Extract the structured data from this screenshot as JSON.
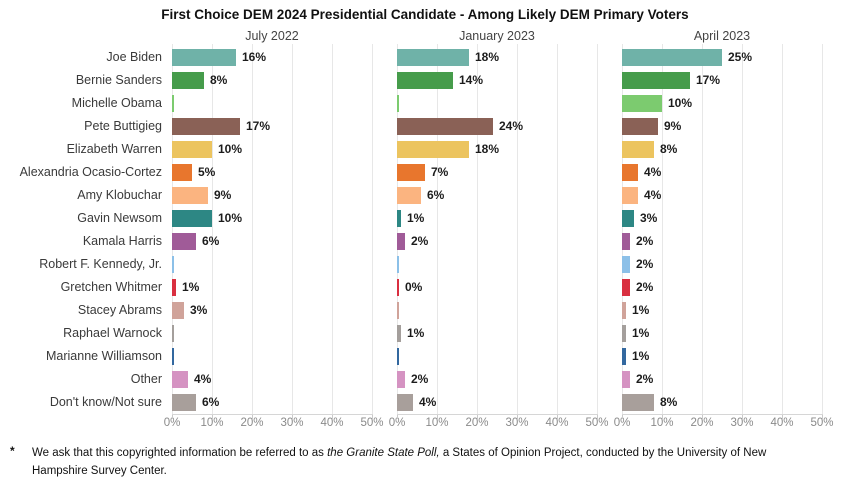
{
  "title": "First Choice DEM 2024 Presidential Candidate - Among Likely DEM Primary Voters",
  "footnote": {
    "marker": "*",
    "prefix": "We ask that this copyrighted information be referred to as ",
    "italic": "the Granite State Poll,",
    "suffix": " a States of Opinion Project, conducted by the University of New Hampshire Survey Center."
  },
  "chart_data": {
    "type": "bar",
    "orientation": "horizontal",
    "panels": [
      "July 2022",
      "January 2023",
      "April 2023"
    ],
    "x_ticks": [
      "0%",
      "10%",
      "20%",
      "30%",
      "40%",
      "50%"
    ],
    "xlim": [
      0,
      50
    ],
    "grid": true,
    "candidates": [
      {
        "name": "Joe Biden",
        "color": "#6fb2a8",
        "values": [
          16,
          18,
          25
        ],
        "labels": [
          "16%",
          "18%",
          "25%"
        ]
      },
      {
        "name": "Bernie Sanders",
        "color": "#469c4b",
        "values": [
          8,
          14,
          17
        ],
        "labels": [
          "8%",
          "14%",
          "17%"
        ]
      },
      {
        "name": "Michelle Obama",
        "color": "#7ccb6f",
        "values": [
          null,
          null,
          10
        ],
        "labels": [
          null,
          null,
          "10%"
        ]
      },
      {
        "name": "Pete Buttigieg",
        "color": "#8a6156",
        "values": [
          17,
          24,
          9
        ],
        "labels": [
          "17%",
          "24%",
          "9%"
        ]
      },
      {
        "name": "Elizabeth Warren",
        "color": "#ecc45f",
        "values": [
          10,
          18,
          8
        ],
        "labels": [
          "10%",
          "18%",
          "8%"
        ]
      },
      {
        "name": "Alexandria Ocasio-Cortez",
        "color": "#e8762d",
        "values": [
          5,
          7,
          4
        ],
        "labels": [
          "5%",
          "7%",
          "4%"
        ]
      },
      {
        "name": "Amy Klobuchar",
        "color": "#fbb480",
        "values": [
          9,
          6,
          4
        ],
        "labels": [
          "9%",
          "6%",
          "4%"
        ]
      },
      {
        "name": "Gavin Newsom",
        "color": "#2d8784",
        "values": [
          10,
          1,
          3
        ],
        "labels": [
          "10%",
          "1%",
          "3%"
        ]
      },
      {
        "name": "Kamala Harris",
        "color": "#a05b98",
        "values": [
          6,
          2,
          2
        ],
        "labels": [
          "6%",
          "2%",
          "2%"
        ]
      },
      {
        "name": "Robert F. Kennedy, Jr.",
        "color": "#8cc0e8",
        "values": [
          null,
          null,
          2
        ],
        "labels": [
          null,
          null,
          "2%"
        ]
      },
      {
        "name": "Gretchen Whitmer",
        "color": "#d92f40",
        "values": [
          1,
          0,
          2
        ],
        "labels": [
          "1%",
          "0%",
          "2%"
        ]
      },
      {
        "name": "Stacey Abrams",
        "color": "#d0a39a",
        "values": [
          3,
          null,
          1
        ],
        "labels": [
          "3%",
          null,
          "1%"
        ]
      },
      {
        "name": "Raphael Warnock",
        "color": "#a49f9c",
        "values": [
          null,
          1,
          1
        ],
        "labels": [
          null,
          "1%",
          "1%"
        ]
      },
      {
        "name": "Marianne Williamson",
        "color": "#33689f",
        "values": [
          null,
          null,
          1
        ],
        "labels": [
          null,
          null,
          "1%"
        ]
      },
      {
        "name": "Other",
        "color": "#d593c2",
        "values": [
          4,
          2,
          2
        ],
        "labels": [
          "4%",
          "2%",
          "2%"
        ]
      },
      {
        "name": "Don't know/Not sure",
        "color": "#a89f9b",
        "values": [
          6,
          4,
          8
        ],
        "labels": [
          "6%",
          "4%",
          "8%"
        ]
      }
    ]
  }
}
